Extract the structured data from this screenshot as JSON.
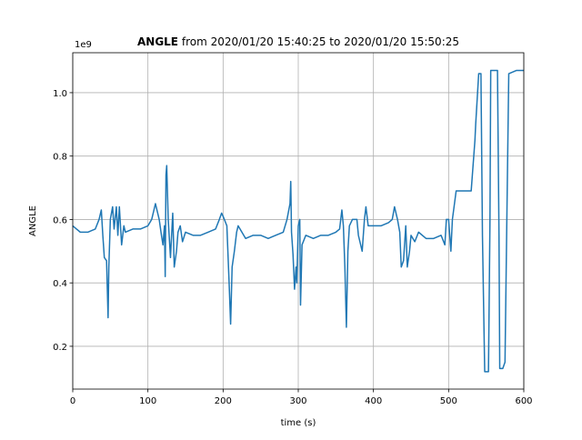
{
  "chart_data": {
    "type": "line",
    "title_parts": [
      "ANGLE",
      "from 2020/01/20 15:40:25 to 2020/01/20 15:50:25"
    ],
    "x_label": "time (s)",
    "y_label": "ANGLE",
    "y_offset_text": "1e9",
    "color": "#1f77b4",
    "grid": true,
    "xlim": [
      0,
      600
    ],
    "ylim": [
      0.065,
      1.126
    ],
    "xticks": [
      0,
      100,
      200,
      300,
      400,
      500,
      600
    ],
    "yticks": [
      0.2,
      0.4,
      0.6,
      0.8,
      {
        "value": 1,
        "label": "1.0"
      }
    ],
    "x": [
      0,
      5,
      10,
      20,
      30,
      35,
      38,
      40,
      42,
      45,
      47,
      48,
      50,
      53,
      55,
      58,
      60,
      62,
      65,
      68,
      70,
      80,
      90,
      100,
      105,
      110,
      115,
      118,
      120,
      122,
      123,
      124,
      125,
      127,
      130,
      133,
      135,
      138,
      140,
      143,
      146,
      150,
      160,
      170,
      180,
      190,
      195,
      198,
      200,
      205,
      208,
      210,
      212,
      215,
      218,
      220,
      225,
      230,
      240,
      250,
      260,
      270,
      280,
      285,
      289,
      290,
      291,
      293,
      295,
      297,
      298,
      300,
      302,
      303,
      305,
      310,
      320,
      330,
      340,
      350,
      355,
      358,
      360,
      362,
      364,
      366,
      368,
      372,
      378,
      380,
      385,
      388,
      390,
      393,
      400,
      410,
      420,
      425,
      428,
      432,
      435,
      437,
      440,
      443,
      445,
      448,
      450,
      455,
      460,
      470,
      480,
      490,
      495,
      497,
      500,
      503,
      505,
      510,
      520,
      530,
      535,
      536,
      540,
      543,
      545,
      548,
      553,
      555,
      556,
      565,
      567,
      568,
      572,
      575,
      577,
      580,
      590,
      600
    ],
    "values": [
      0.58,
      0.57,
      0.56,
      0.56,
      0.57,
      0.6,
      0.63,
      0.55,
      0.48,
      0.47,
      0.29,
      0.45,
      0.6,
      0.64,
      0.57,
      0.64,
      0.55,
      0.64,
      0.52,
      0.58,
      0.56,
      0.57,
      0.57,
      0.58,
      0.6,
      0.65,
      0.6,
      0.55,
      0.52,
      0.58,
      0.42,
      0.74,
      0.77,
      0.6,
      0.48,
      0.62,
      0.45,
      0.5,
      0.56,
      0.58,
      0.53,
      0.56,
      0.55,
      0.55,
      0.56,
      0.57,
      0.6,
      0.62,
      0.61,
      0.58,
      0.4,
      0.27,
      0.45,
      0.5,
      0.56,
      0.58,
      0.56,
      0.54,
      0.55,
      0.55,
      0.54,
      0.55,
      0.56,
      0.6,
      0.65,
      0.72,
      0.56,
      0.49,
      0.38,
      0.45,
      0.4,
      0.58,
      0.6,
      0.33,
      0.52,
      0.55,
      0.54,
      0.55,
      0.55,
      0.56,
      0.57,
      0.63,
      0.58,
      0.45,
      0.26,
      0.5,
      0.58,
      0.6,
      0.6,
      0.55,
      0.5,
      0.6,
      0.64,
      0.58,
      0.58,
      0.58,
      0.59,
      0.6,
      0.64,
      0.6,
      0.56,
      0.45,
      0.47,
      0.58,
      0.45,
      0.5,
      0.55,
      0.53,
      0.56,
      0.54,
      0.54,
      0.55,
      0.52,
      0.6,
      0.6,
      0.5,
      0.6,
      0.69,
      0.69,
      0.69,
      0.85,
      0.9,
      1.06,
      1.06,
      0.55,
      0.12,
      0.12,
      0.6,
      1.07,
      1.07,
      0.55,
      0.13,
      0.13,
      0.15,
      0.52,
      1.06,
      1.07,
      1.07
    ]
  }
}
